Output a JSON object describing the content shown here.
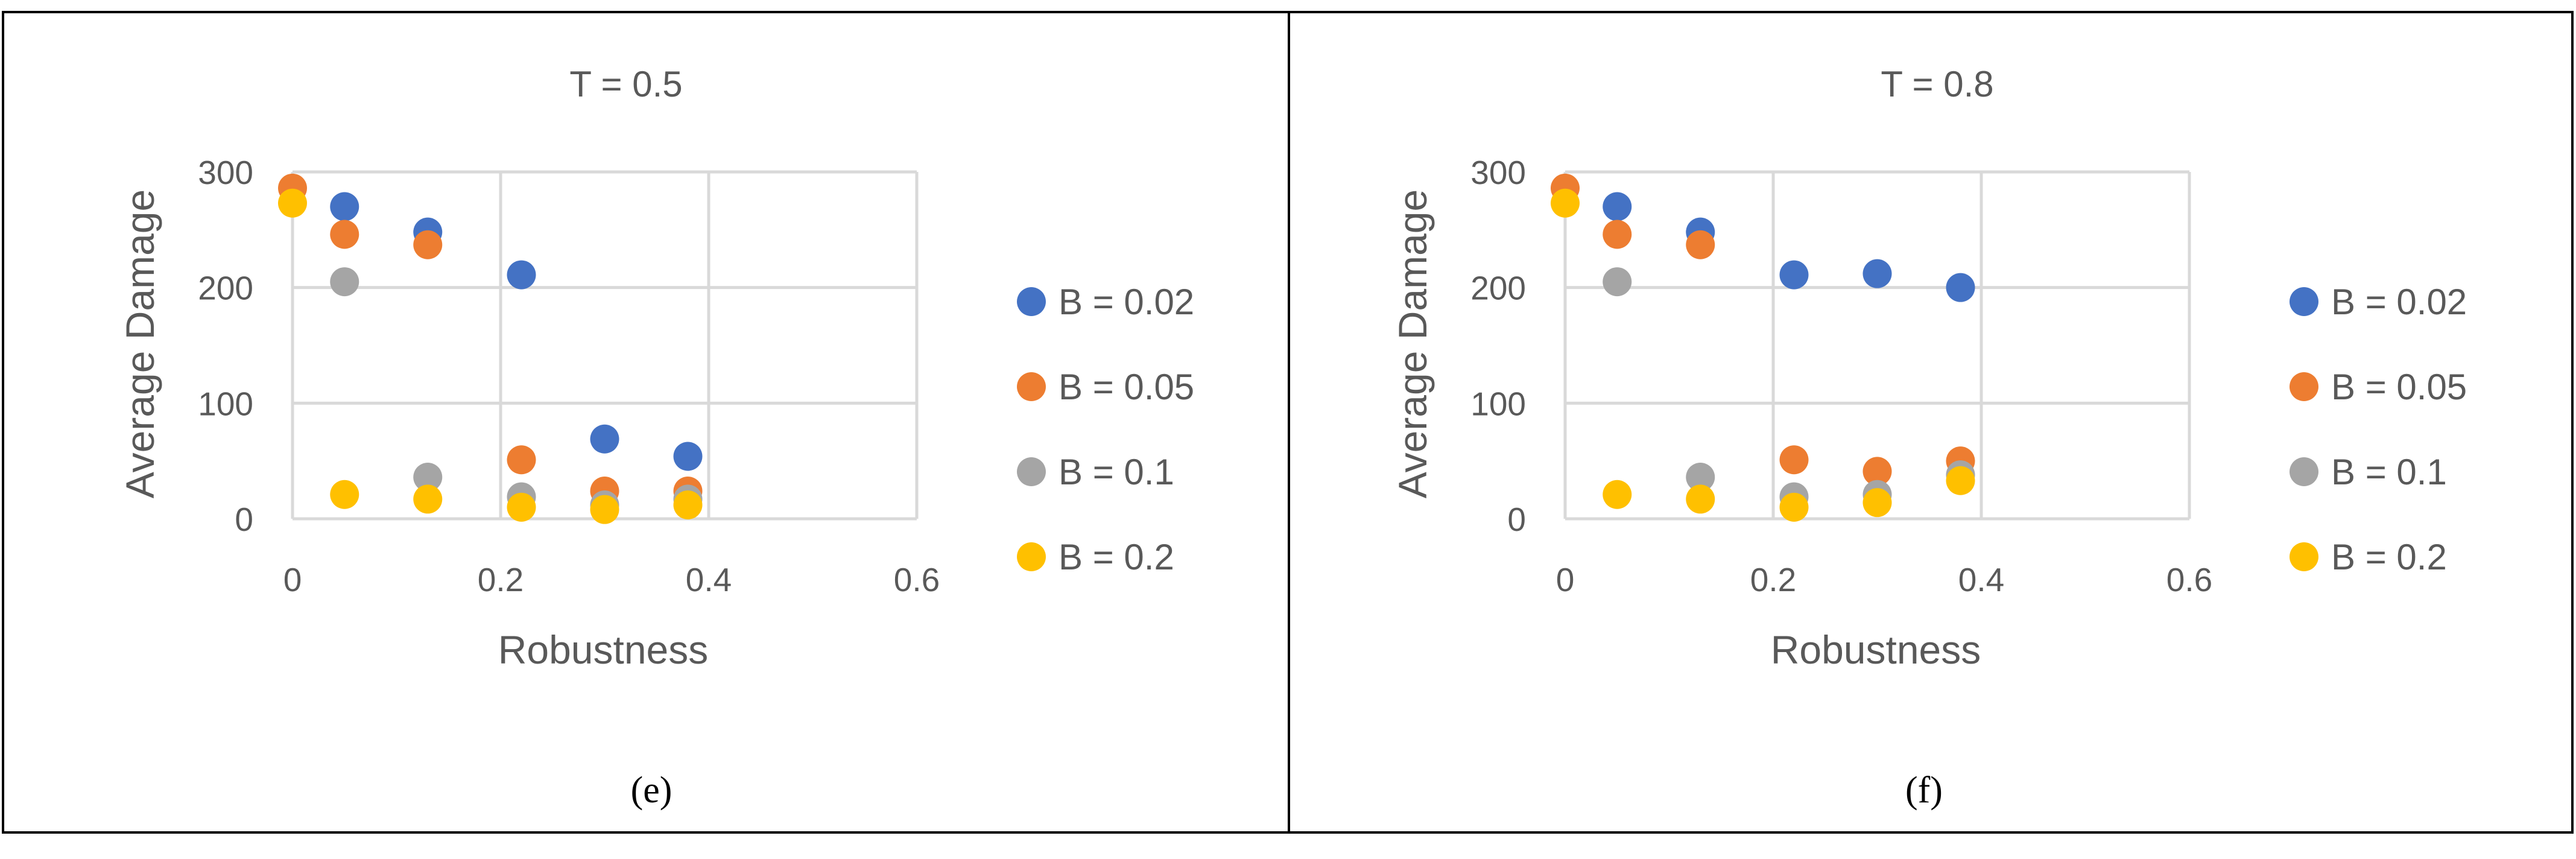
{
  "chart_data": [
    {
      "type": "scatter",
      "title": "T = 0.5",
      "xlabel": "Robustness",
      "ylabel": "Average Damage",
      "xlim": [
        0,
        0.6
      ],
      "ylim": [
        0,
        300
      ],
      "xticks": [
        0,
        0.2,
        0.4,
        0.6
      ],
      "yticks": [
        0,
        100,
        200,
        300
      ],
      "x_tick_labels": [
        "0",
        "0.2",
        "0.4",
        "0.6"
      ],
      "y_tick_labels": [
        "0",
        "100",
        "200",
        "300"
      ],
      "grid": true,
      "legend_position": "right",
      "panel_label": "(e)",
      "series": [
        {
          "name": "B = 0.02",
          "color": "#4472C4",
          "points": [
            [
              0.05,
              270
            ],
            [
              0.13,
              248
            ],
            [
              0.22,
              211
            ],
            [
              0.3,
              69
            ],
            [
              0.38,
              54
            ]
          ]
        },
        {
          "name": "B = 0.05",
          "color": "#ED7D31",
          "points": [
            [
              0,
              286
            ],
            [
              0.05,
              246
            ],
            [
              0.13,
              237
            ],
            [
              0.22,
              51
            ],
            [
              0.3,
              24
            ],
            [
              0.38,
              24
            ]
          ]
        },
        {
          "name": "B = 0.1",
          "color": "#A5A5A5",
          "points": [
            [
              0.05,
              205
            ],
            [
              0.13,
              36
            ],
            [
              0.22,
              19
            ],
            [
              0.3,
              12
            ],
            [
              0.38,
              17
            ]
          ]
        },
        {
          "name": "B = 0.2",
          "color": "#FFC000",
          "points": [
            [
              0,
              273
            ],
            [
              0.05,
              21
            ],
            [
              0.13,
              17
            ],
            [
              0.22,
              10
            ],
            [
              0.3,
              8
            ],
            [
              0.38,
              12
            ]
          ]
        }
      ]
    },
    {
      "type": "scatter",
      "title": "T = 0.8",
      "xlabel": "Robustness",
      "ylabel": "Average Damage",
      "xlim": [
        0,
        0.6
      ],
      "ylim": [
        0,
        300
      ],
      "xticks": [
        0,
        0.2,
        0.4,
        0.6
      ],
      "yticks": [
        0,
        100,
        200,
        300
      ],
      "x_tick_labels": [
        "0",
        "0.2",
        "0.4",
        "0.6"
      ],
      "y_tick_labels": [
        "0",
        "100",
        "200",
        "300"
      ],
      "grid": true,
      "legend_position": "right",
      "panel_label": "(f)",
      "series": [
        {
          "name": "B = 0.02",
          "color": "#4472C4",
          "points": [
            [
              0.05,
              270
            ],
            [
              0.13,
              248
            ],
            [
              0.22,
              211
            ],
            [
              0.3,
              212
            ],
            [
              0.38,
              200
            ]
          ]
        },
        {
          "name": "B = 0.05",
          "color": "#ED7D31",
          "points": [
            [
              0,
              286
            ],
            [
              0.05,
              246
            ],
            [
              0.13,
              237
            ],
            [
              0.22,
              51
            ],
            [
              0.3,
              41
            ],
            [
              0.38,
              50
            ]
          ]
        },
        {
          "name": "B = 0.1",
          "color": "#A5A5A5",
          "points": [
            [
              0.05,
              205
            ],
            [
              0.13,
              36
            ],
            [
              0.22,
              19
            ],
            [
              0.3,
              21
            ],
            [
              0.38,
              38
            ]
          ]
        },
        {
          "name": "B = 0.2",
          "color": "#FFC000",
          "points": [
            [
              0,
              273
            ],
            [
              0.05,
              21
            ],
            [
              0.13,
              17
            ],
            [
              0.22,
              10
            ],
            [
              0.3,
              14
            ],
            [
              0.38,
              33
            ]
          ]
        }
      ]
    }
  ]
}
